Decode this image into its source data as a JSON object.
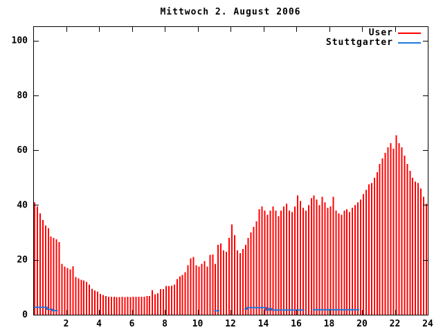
{
  "title": "Mittwoch 2. August 2006",
  "colors": {
    "user": "#ff0000",
    "stuttgarter": "#1878e0",
    "axis": "#000000",
    "background": "#ffffff",
    "text": "#000000"
  },
  "legend": [
    {
      "label": "User",
      "color": "#ff0000"
    },
    {
      "label": "Stuttgarter",
      "color": "#1878e0"
    }
  ],
  "chart_data": {
    "type": "bar",
    "title": "Mittwoch 2. August 2006",
    "xlabel": "",
    "ylabel": "",
    "x_unit": "hour of day",
    "interval_minutes": 10,
    "xlim": [
      0,
      24
    ],
    "ylim": [
      0,
      100
    ],
    "x_ticks": [
      2,
      4,
      6,
      8,
      10,
      12,
      14,
      16,
      18,
      20,
      22,
      24
    ],
    "y_ticks": [
      0,
      20,
      40,
      60,
      80,
      100
    ],
    "grid": false,
    "legend_position": "top-right",
    "series": [
      {
        "name": "User",
        "render": "impulse-bars",
        "color": "#ff0000",
        "values": [
          41,
          39.5,
          37,
          34.5,
          32.5,
          31.5,
          28.5,
          28,
          27.5,
          26.5,
          18.5,
          17.5,
          17,
          16.5,
          17.7,
          13.8,
          13.2,
          12.8,
          12.5,
          12,
          11,
          9.5,
          8.8,
          8.4,
          7.6,
          7.2,
          6.8,
          6.6,
          6.5,
          6.5,
          6.4,
          6.4,
          6.5,
          6.4,
          6.5,
          6.4,
          6.5,
          6.5,
          6.6,
          6.5,
          6.6,
          6.8,
          6.8,
          8.9,
          7.5,
          7.8,
          9.3,
          9.3,
          10.5,
          10.5,
          10.6,
          11,
          13,
          14,
          14.5,
          15.5,
          18,
          20.5,
          21,
          18,
          17.5,
          18.5,
          19.5,
          17.5,
          21.8,
          22,
          18.5,
          25.5,
          26,
          23.5,
          23,
          28,
          32.9,
          29,
          23.5,
          22.5,
          24,
          25.5,
          28,
          30,
          32,
          34,
          38.5,
          39.5,
          38,
          36.5,
          38,
          39.5,
          38,
          36,
          38,
          39.5,
          40.5,
          38,
          37.5,
          39.5,
          43.5,
          41.5,
          39,
          38,
          40,
          42.5,
          43.5,
          42,
          40,
          43,
          41,
          39,
          39.5,
          43,
          38,
          37,
          36.5,
          38,
          38.5,
          37.5,
          39,
          40,
          41,
          42,
          44,
          45.5,
          47.5,
          48,
          50,
          52,
          55,
          57,
          59,
          61,
          62.5,
          60.5,
          65.5,
          62.5,
          61,
          58,
          55,
          52.5,
          50,
          48.5,
          48,
          46,
          43,
          40.5
        ]
      },
      {
        "name": "Stuttgarter",
        "render": "step-line",
        "color": "#1878e0",
        "values": [
          2.7,
          2.7,
          2.7,
          2.7,
          2.7,
          2.0,
          2.0,
          1.5,
          1.5,
          null,
          null,
          null,
          null,
          null,
          null,
          null,
          null,
          null,
          null,
          null,
          null,
          null,
          null,
          null,
          null,
          null,
          null,
          null,
          null,
          null,
          null,
          null,
          null,
          null,
          null,
          null,
          null,
          null,
          null,
          null,
          null,
          null,
          null,
          null,
          null,
          null,
          null,
          null,
          null,
          null,
          null,
          null,
          null,
          null,
          null,
          null,
          null,
          null,
          null,
          null,
          null,
          null,
          null,
          null,
          null,
          null,
          1.4,
          1.4,
          null,
          null,
          null,
          null,
          null,
          null,
          null,
          null,
          null,
          2.1,
          2.6,
          2.6,
          2.6,
          2.6,
          2.6,
          2.6,
          2.6,
          1.7,
          2.2,
          1.7,
          1.7,
          1.7,
          1.7,
          1.7,
          1.7,
          1.7,
          1.7,
          1.7,
          1.7,
          1.7,
          1.7,
          null,
          null,
          null,
          1.8,
          1.8,
          1.8,
          1.8,
          1.8,
          1.8,
          1.8,
          1.8,
          1.8,
          1.8,
          1.8,
          1.8,
          1.8,
          1.8,
          1.8,
          1.8,
          1.8,
          null,
          null,
          null,
          null,
          null,
          null,
          null,
          null,
          null,
          null,
          null,
          null,
          null,
          null,
          null,
          null,
          null,
          null,
          null,
          null,
          null,
          null,
          null,
          null,
          null
        ]
      }
    ]
  }
}
